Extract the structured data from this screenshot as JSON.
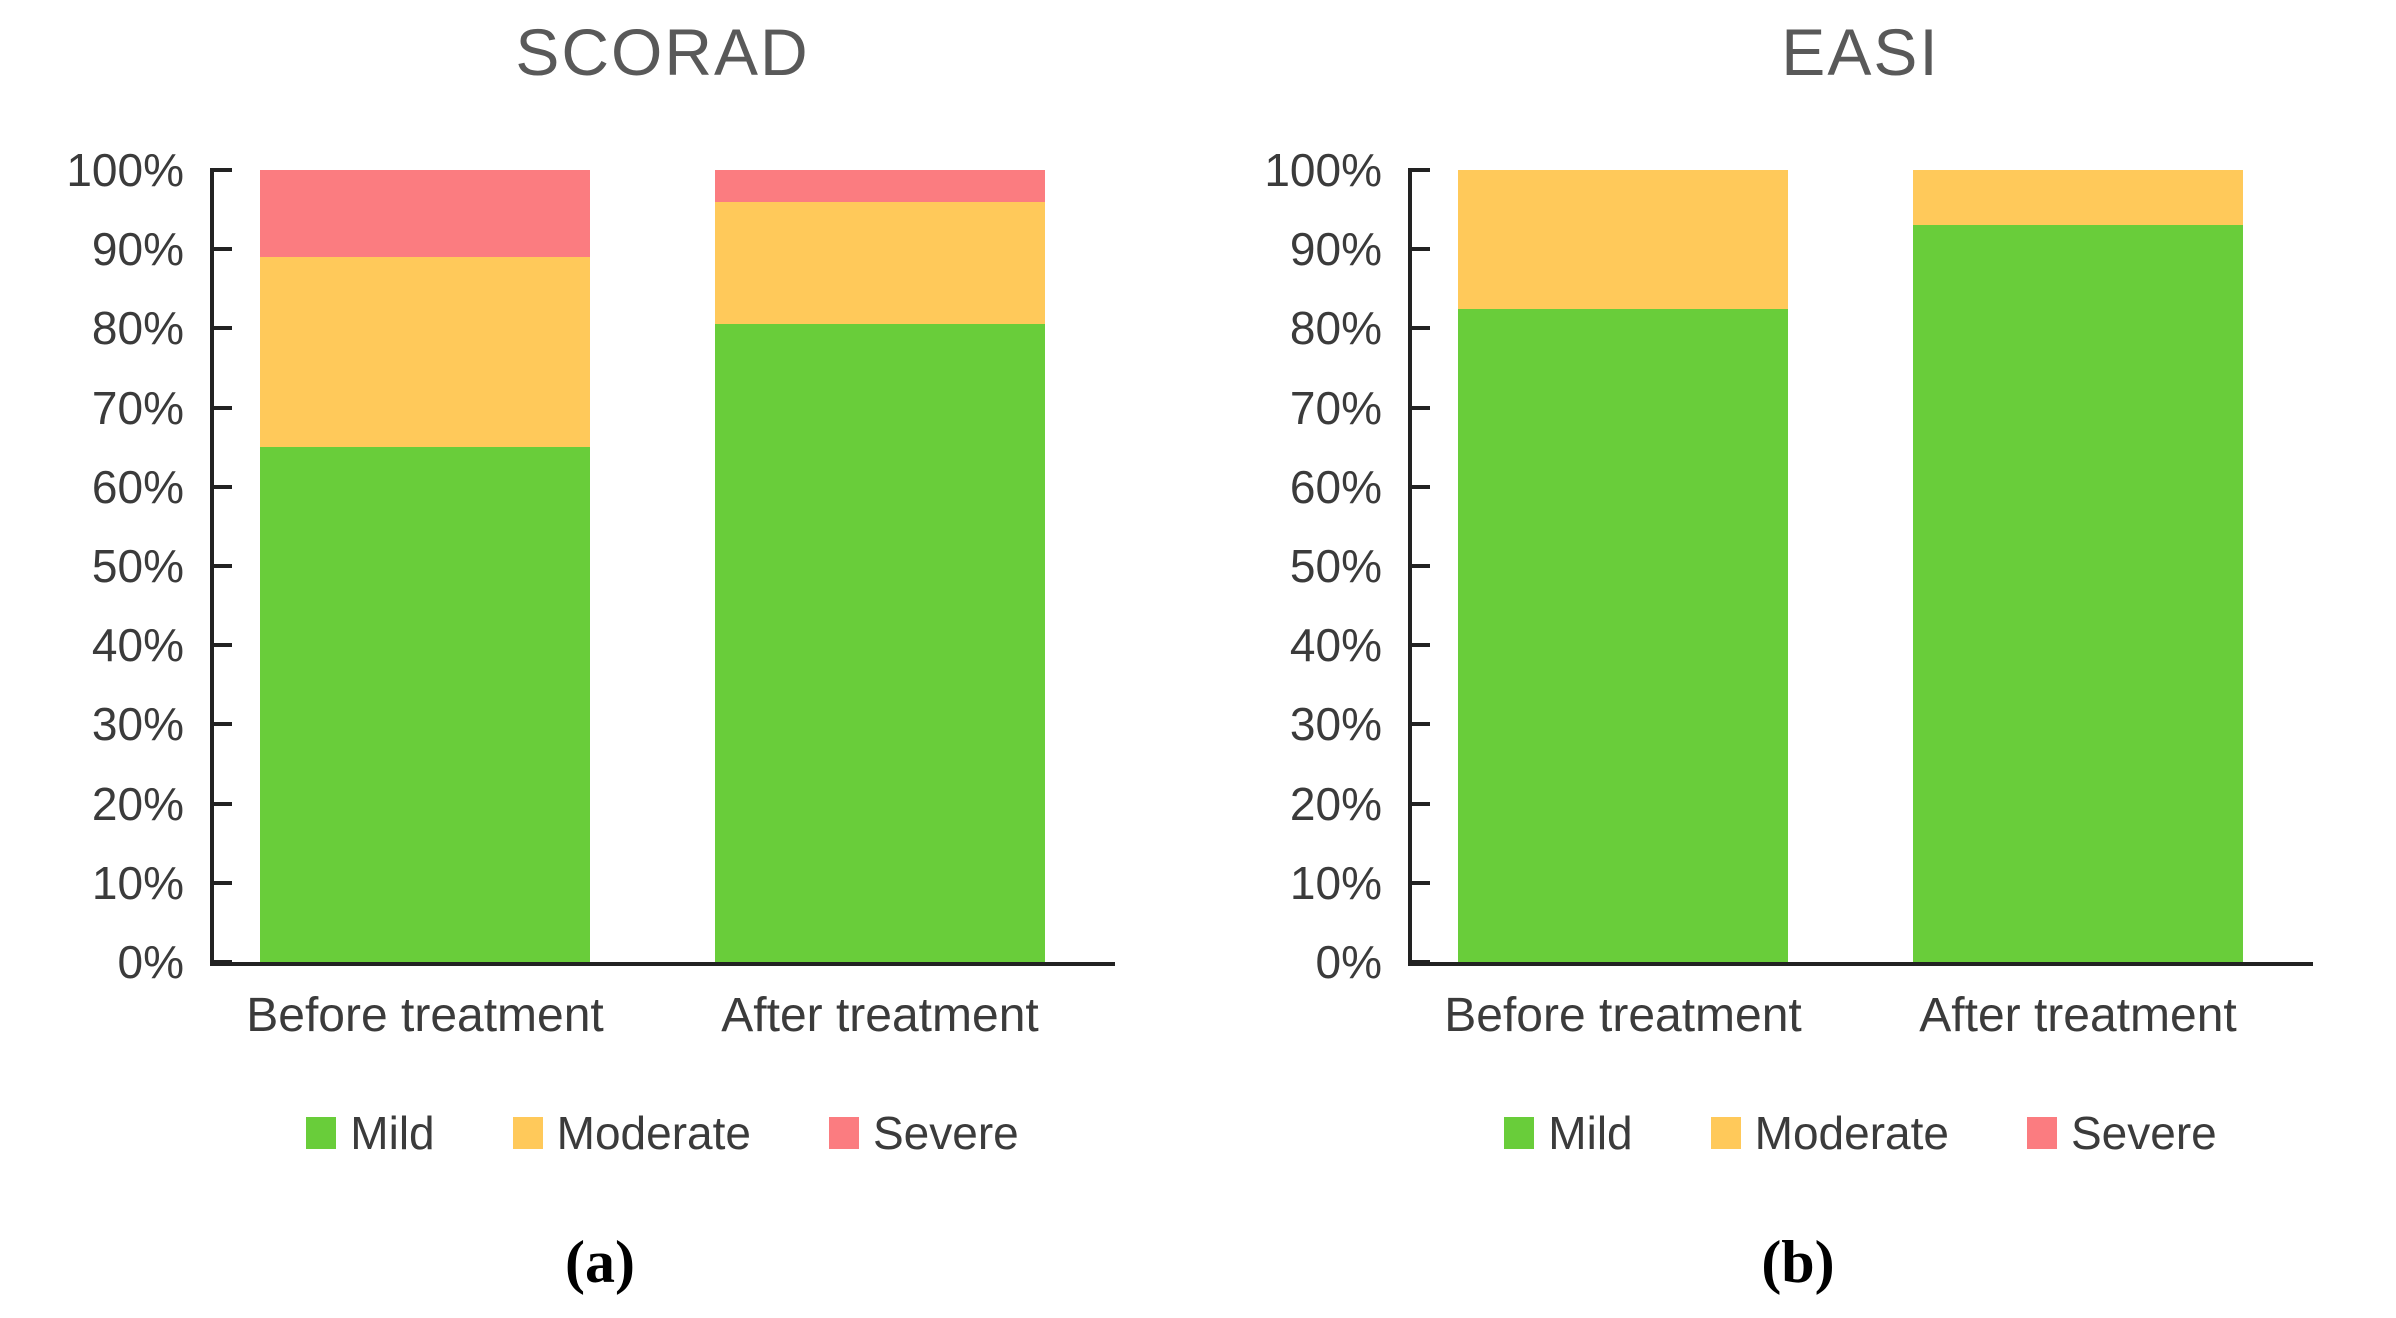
{
  "chart_data": [
    {
      "type": "bar",
      "variant": "stacked-100",
      "title": "SCORAD",
      "caption": "(a)",
      "categories": [
        "Before treatment",
        "After treatment"
      ],
      "series": [
        {
          "name": "Mild",
          "color_key": "mild",
          "values": [
            65,
            80.5
          ]
        },
        {
          "name": "Moderate",
          "color_key": "moderate",
          "values": [
            24,
            15.5
          ]
        },
        {
          "name": "Severe",
          "color_key": "severe",
          "values": [
            11,
            4
          ]
        }
      ],
      "ylim": [
        0,
        100
      ],
      "y_tick_labels": [
        "0%",
        "10%",
        "20%",
        "30%",
        "40%",
        "50%",
        "60%",
        "70%",
        "80%",
        "90%",
        "100%"
      ],
      "grid": false,
      "legend_position": "bottom"
    },
    {
      "type": "bar",
      "variant": "stacked-100",
      "title": "EASI",
      "caption": "(b)",
      "categories": [
        "Before treatment",
        "After treatment"
      ],
      "series": [
        {
          "name": "Mild",
          "color_key": "mild",
          "values": [
            82.5,
            93
          ]
        },
        {
          "name": "Moderate",
          "color_key": "moderate",
          "values": [
            17.5,
            7
          ]
        },
        {
          "name": "Severe",
          "color_key": "severe",
          "values": [
            0,
            0
          ]
        }
      ],
      "ylim": [
        0,
        100
      ],
      "y_tick_labels": [
        "0%",
        "10%",
        "20%",
        "30%",
        "40%",
        "50%",
        "60%",
        "70%",
        "80%",
        "90%",
        "100%"
      ],
      "grid": false,
      "legend_position": "bottom"
    }
  ],
  "colors": {
    "mild": "#69CD3A",
    "moderate": "#FFC95A",
    "severe": "#FB7C80",
    "title_text": "#595959",
    "axis_text": "#3B3B3B",
    "axis_line": "#222222"
  }
}
